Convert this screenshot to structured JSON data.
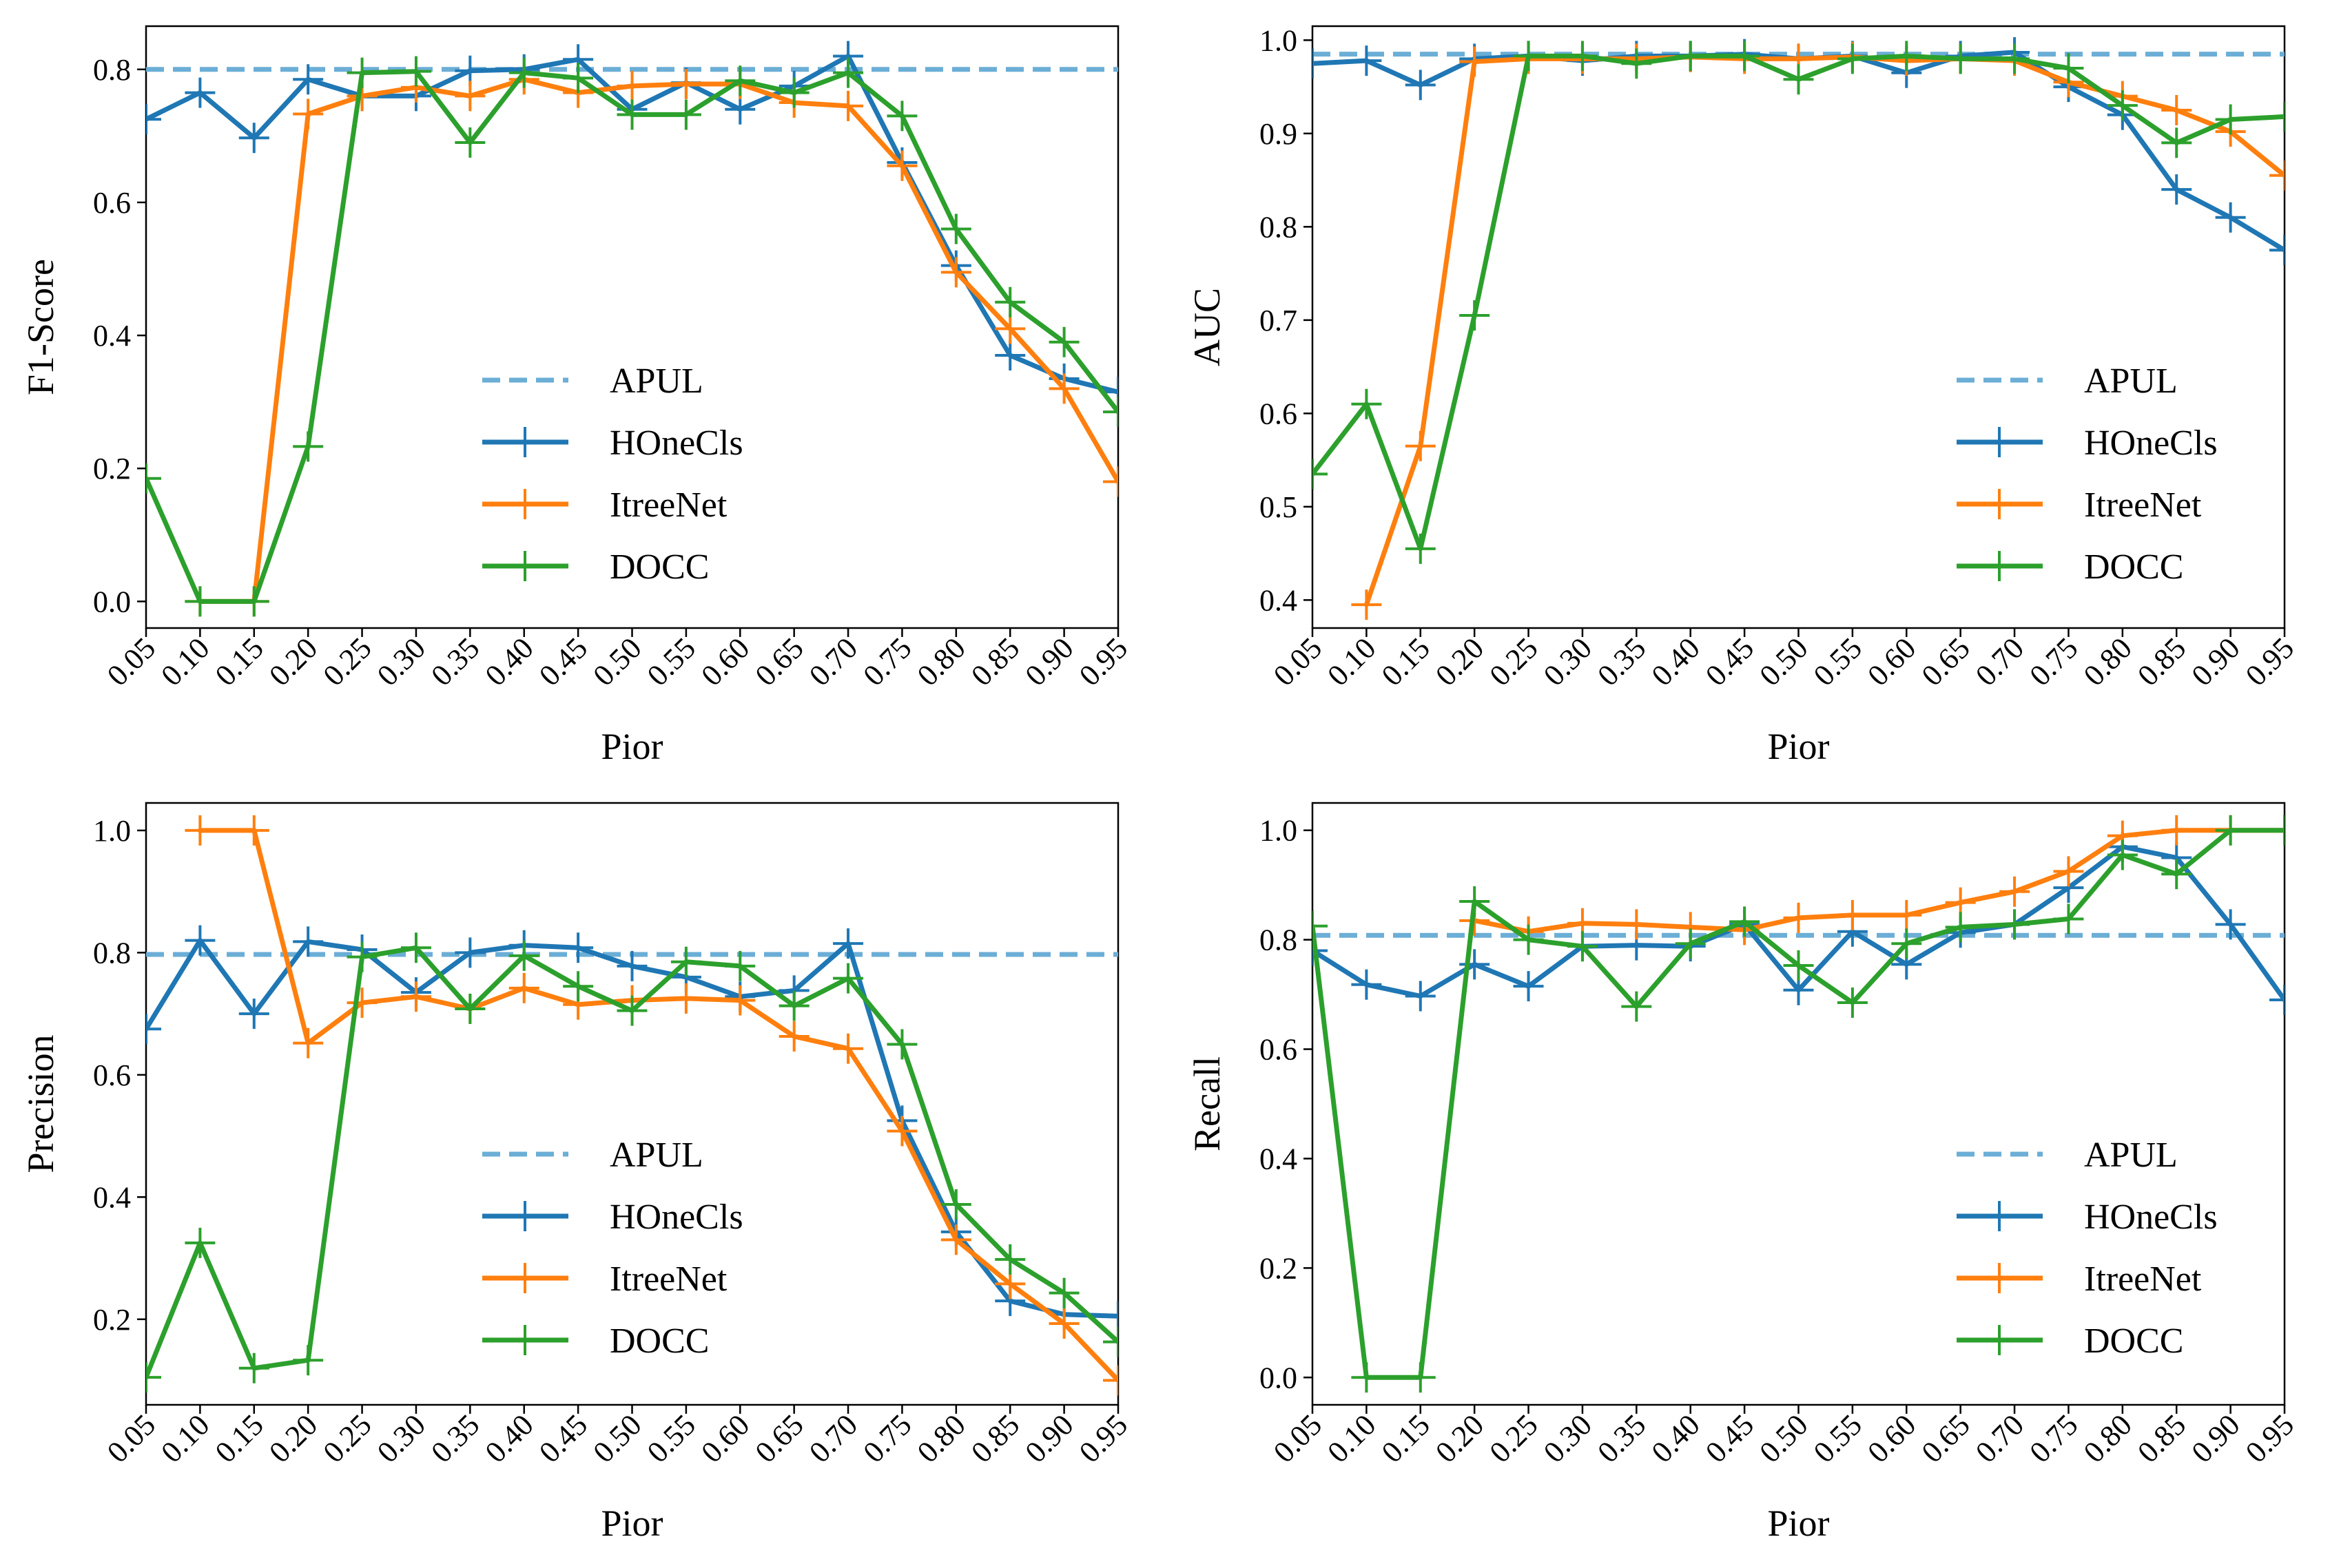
{
  "chart_data": [
    {
      "type": "line",
      "ylabel": "F1-Score",
      "xlabel": "Pior",
      "x": [
        0.05,
        0.1,
        0.15,
        0.2,
        0.25,
        0.3,
        0.35,
        0.4,
        0.45,
        0.5,
        0.55,
        0.6,
        0.65,
        0.7,
        0.75,
        0.8,
        0.85,
        0.9,
        0.95
      ],
      "xticklabels": [
        "0.05",
        "0.10",
        "0.15",
        "0.20",
        "0.25",
        "0.30",
        "0.35",
        "0.40",
        "0.45",
        "0.50",
        "0.55",
        "0.60",
        "0.65",
        "0.70",
        "0.75",
        "0.80",
        "0.85",
        "0.90",
        "0.95"
      ],
      "ylim": [
        -0.04,
        0.865
      ],
      "yticks": [
        0.0,
        0.2,
        0.4,
        0.6,
        0.8
      ],
      "yticklabels": [
        "0.0",
        "0.2",
        "0.4",
        "0.6",
        "0.8"
      ],
      "legend": "center-right",
      "series": [
        {
          "name": "APUL",
          "style": "dashed",
          "color": "#6baed6",
          "values": [
            0.8,
            0.8,
            0.8,
            0.8,
            0.8,
            0.8,
            0.8,
            0.8,
            0.8,
            0.8,
            0.8,
            0.8,
            0.8,
            0.8,
            0.8,
            0.8,
            0.8,
            0.8,
            0.8
          ]
        },
        {
          "name": "HOneCls",
          "style": "solid",
          "color": "#1f77b4",
          "values": [
            0.725,
            0.765,
            0.697,
            0.785,
            0.76,
            0.76,
            0.798,
            0.8,
            0.815,
            0.74,
            0.78,
            0.74,
            0.775,
            0.82,
            0.66,
            0.505,
            0.37,
            0.335,
            0.315
          ]
        },
        {
          "name": "ItreeNet",
          "style": "solid",
          "color": "#ff7f0e",
          "values": [
            null,
            0.0,
            0.0,
            0.733,
            0.76,
            0.773,
            0.76,
            0.785,
            0.765,
            0.775,
            0.778,
            0.778,
            0.75,
            0.745,
            0.655,
            0.495,
            0.41,
            0.32,
            0.18
          ]
        },
        {
          "name": "DOCC",
          "style": "solid",
          "color": "#2ca02c",
          "values": [
            0.185,
            0.0,
            0.0,
            0.233,
            0.795,
            0.797,
            0.69,
            0.795,
            0.787,
            0.732,
            0.732,
            0.783,
            0.765,
            0.795,
            0.73,
            0.56,
            0.45,
            0.39,
            0.285
          ]
        }
      ]
    },
    {
      "type": "line",
      "ylabel": "AUC",
      "xlabel": "Pior",
      "x": [
        0.05,
        0.1,
        0.15,
        0.2,
        0.25,
        0.3,
        0.35,
        0.4,
        0.45,
        0.5,
        0.55,
        0.6,
        0.65,
        0.7,
        0.75,
        0.8,
        0.85,
        0.9,
        0.95
      ],
      "xticklabels": [
        "0.05",
        "0.10",
        "0.15",
        "0.20",
        "0.25",
        "0.30",
        "0.35",
        "0.40",
        "0.45",
        "0.50",
        "0.55",
        "0.60",
        "0.65",
        "0.70",
        "0.75",
        "0.80",
        "0.85",
        "0.90",
        "0.95"
      ],
      "ylim": [
        0.37,
        1.015
      ],
      "yticks": [
        0.4,
        0.5,
        0.6,
        0.7,
        0.8,
        0.9,
        1.0
      ],
      "yticklabels": [
        "0.4",
        "0.5",
        "0.6",
        "0.7",
        "0.8",
        "0.9",
        "1.0"
      ],
      "legend": "center-right",
      "series": [
        {
          "name": "APUL",
          "style": "dashed",
          "color": "#6baed6",
          "values": [
            0.985,
            0.985,
            0.985,
            0.985,
            0.985,
            0.985,
            0.985,
            0.985,
            0.985,
            0.985,
            0.985,
            0.985,
            0.985,
            0.985,
            0.985,
            0.985,
            0.985,
            0.985,
            0.985
          ]
        },
        {
          "name": "HOneCls",
          "style": "solid",
          "color": "#1f77b4",
          "values": [
            0.975,
            0.978,
            0.952,
            0.98,
            0.983,
            0.978,
            0.983,
            0.983,
            0.985,
            0.98,
            0.983,
            0.965,
            0.983,
            0.987,
            0.95,
            0.92,
            0.84,
            0.81,
            0.775
          ]
        },
        {
          "name": "ItreeNet",
          "style": "solid",
          "color": "#ff7f0e",
          "values": [
            null,
            0.395,
            0.565,
            0.977,
            0.98,
            0.98,
            0.98,
            0.982,
            0.98,
            0.98,
            0.982,
            0.978,
            0.98,
            0.978,
            0.955,
            0.94,
            0.925,
            0.902,
            0.855
          ]
        },
        {
          "name": "DOCC",
          "style": "solid",
          "color": "#2ca02c",
          "values": [
            0.535,
            0.61,
            0.455,
            0.705,
            0.983,
            0.983,
            0.975,
            0.983,
            0.983,
            0.958,
            0.98,
            0.983,
            0.98,
            0.98,
            0.97,
            0.93,
            0.89,
            0.915,
            0.918
          ]
        }
      ]
    },
    {
      "type": "line",
      "ylabel": "Precision",
      "xlabel": "Pior",
      "x": [
        0.05,
        0.1,
        0.15,
        0.2,
        0.25,
        0.3,
        0.35,
        0.4,
        0.45,
        0.5,
        0.55,
        0.6,
        0.65,
        0.7,
        0.75,
        0.8,
        0.85,
        0.9,
        0.95
      ],
      "xticklabels": [
        "0.05",
        "0.10",
        "0.15",
        "0.20",
        "0.25",
        "0.30",
        "0.35",
        "0.40",
        "0.45",
        "0.50",
        "0.55",
        "0.60",
        "0.65",
        "0.70",
        "0.75",
        "0.80",
        "0.85",
        "0.90",
        "0.95"
      ],
      "ylim": [
        0.06,
        1.045
      ],
      "yticks": [
        0.2,
        0.4,
        0.6,
        0.8,
        1.0
      ],
      "yticklabels": [
        "0.2",
        "0.4",
        "0.6",
        "0.8",
        "1.0"
      ],
      "legend": "center-right",
      "series": [
        {
          "name": "APUL",
          "style": "dashed",
          "color": "#6baed6",
          "values": [
            0.797,
            0.797,
            0.797,
            0.797,
            0.797,
            0.797,
            0.797,
            0.797,
            0.797,
            0.797,
            0.797,
            0.797,
            0.797,
            0.797,
            0.797,
            0.797,
            0.797,
            0.797,
            0.797
          ]
        },
        {
          "name": "HOneCls",
          "style": "solid",
          "color": "#1f77b4",
          "values": [
            0.675,
            0.82,
            0.7,
            0.818,
            0.805,
            0.735,
            0.8,
            0.812,
            0.808,
            0.778,
            0.76,
            0.728,
            0.738,
            0.815,
            0.525,
            0.343,
            0.23,
            0.208,
            0.205
          ]
        },
        {
          "name": "ItreeNet",
          "style": "solid",
          "color": "#ff7f0e",
          "values": [
            null,
            1.0,
            1.0,
            0.652,
            0.718,
            0.728,
            0.708,
            0.742,
            0.715,
            0.722,
            0.725,
            0.722,
            0.663,
            0.643,
            0.508,
            0.33,
            0.258,
            0.193,
            0.1
          ]
        },
        {
          "name": "DOCC",
          "style": "solid",
          "color": "#2ca02c",
          "values": [
            0.105,
            0.325,
            0.12,
            0.133,
            0.793,
            0.808,
            0.708,
            0.795,
            0.745,
            0.705,
            0.785,
            0.778,
            0.713,
            0.758,
            0.65,
            0.388,
            0.298,
            0.243,
            0.163
          ]
        }
      ]
    },
    {
      "type": "line",
      "ylabel": "Recall",
      "xlabel": "Pior",
      "x": [
        0.05,
        0.1,
        0.15,
        0.2,
        0.25,
        0.3,
        0.35,
        0.4,
        0.45,
        0.5,
        0.55,
        0.6,
        0.65,
        0.7,
        0.75,
        0.8,
        0.85,
        0.9,
        0.95
      ],
      "xticklabels": [
        "0.05",
        "0.10",
        "0.15",
        "0.20",
        "0.25",
        "0.30",
        "0.35",
        "0.40",
        "0.45",
        "0.50",
        "0.55",
        "0.60",
        "0.65",
        "0.70",
        "0.75",
        "0.80",
        "0.85",
        "0.90",
        "0.95"
      ],
      "ylim": [
        -0.05,
        1.05
      ],
      "yticks": [
        0.0,
        0.2,
        0.4,
        0.6,
        0.8,
        1.0
      ],
      "yticklabels": [
        "0.0",
        "0.2",
        "0.4",
        "0.6",
        "0.8",
        "1.0"
      ],
      "legend": "center-right",
      "series": [
        {
          "name": "APUL",
          "style": "dashed",
          "color": "#6baed6",
          "values": [
            0.808,
            0.808,
            0.808,
            0.808,
            0.808,
            0.808,
            0.808,
            0.808,
            0.808,
            0.808,
            0.808,
            0.808,
            0.808,
            0.808,
            0.808,
            0.808,
            0.808,
            0.808,
            0.808
          ]
        },
        {
          "name": "HOneCls",
          "style": "solid",
          "color": "#1f77b4",
          "values": [
            0.78,
            0.718,
            0.697,
            0.755,
            0.715,
            0.788,
            0.79,
            0.788,
            0.828,
            0.708,
            0.815,
            0.755,
            0.813,
            0.828,
            0.895,
            0.97,
            0.95,
            0.828,
            0.69
          ]
        },
        {
          "name": "ItreeNet",
          "style": "solid",
          "color": "#ff7f0e",
          "values": [
            null,
            null,
            null,
            0.835,
            0.815,
            0.83,
            0.828,
            0.823,
            0.818,
            0.84,
            0.845,
            0.845,
            0.868,
            0.888,
            0.925,
            0.99,
            1.0,
            1.0,
            1.0
          ]
        },
        {
          "name": "DOCC",
          "style": "solid",
          "color": "#2ca02c",
          "values": [
            0.825,
            0.0,
            0.0,
            0.87,
            0.8,
            0.788,
            0.678,
            0.793,
            0.833,
            0.753,
            0.685,
            0.793,
            0.823,
            0.828,
            0.838,
            0.955,
            0.92,
            1.0,
            1.0
          ]
        }
      ]
    }
  ]
}
